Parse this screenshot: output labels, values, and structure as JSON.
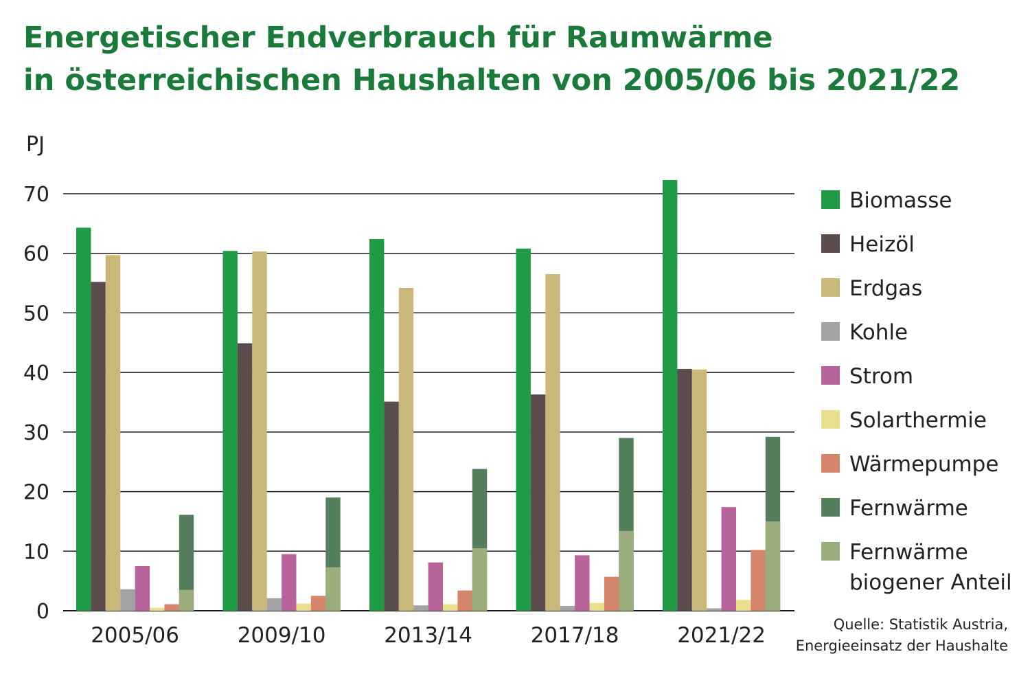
{
  "chart_data": {
    "type": "bar",
    "title_line1": "Energetischer Endverbrauch für Raumwärme",
    "title_line2": "in österreichischen Haushalten von 2005/06 bis 2021/22",
    "unit": "PJ",
    "ylim": [
      0,
      70
    ],
    "yticks": [
      0,
      10,
      20,
      30,
      40,
      50,
      60,
      70
    ],
    "grid": true,
    "legend_position": "right",
    "categories": [
      "2005/06",
      "2009/10",
      "2013/14",
      "2017/18",
      "2021/22"
    ],
    "series": [
      {
        "name": "Biomasse",
        "color": "#1f9a45",
        "values": [
          64.3,
          60.4,
          62.4,
          60.8,
          72.3
        ]
      },
      {
        "name": "Heizöl",
        "color": "#5a4d4c",
        "values": [
          55.2,
          44.9,
          35.1,
          36.3,
          40.6
        ]
      },
      {
        "name": "Erdgas",
        "color": "#c9b87a",
        "values": [
          59.7,
          60.3,
          54.2,
          56.5,
          40.5
        ]
      },
      {
        "name": "Kohle",
        "color": "#a3a3a3",
        "values": [
          3.6,
          2.1,
          0.9,
          0.8,
          0.4
        ]
      },
      {
        "name": "Strom",
        "color": "#b8639a",
        "values": [
          7.5,
          9.5,
          8.1,
          9.3,
          17.4
        ]
      },
      {
        "name": "Solarthermie",
        "color": "#e9e08e",
        "values": [
          0.5,
          1.2,
          1.1,
          1.3,
          1.8
        ]
      },
      {
        "name": "Wärmepumpe",
        "color": "#d4856a",
        "values": [
          1.1,
          2.5,
          3.4,
          5.7,
          10.2
        ]
      },
      {
        "name": "Fernwärme",
        "color": "#557f5c",
        "values": [
          16.1,
          19.0,
          23.8,
          29.0,
          29.2
        ]
      },
      {
        "name": "Fernwärme biogener Anteil",
        "color": "#9aad7d",
        "values": [
          3.5,
          7.3,
          10.5,
          13.4,
          15.0
        ]
      }
    ],
    "stacked_note": "Fernwärme biogener Anteil is shown as the lower part of the Fernwärme bar",
    "legend_labels": [
      [
        "Biomasse"
      ],
      [
        "Heizöl"
      ],
      [
        "Erdgas"
      ],
      [
        "Kohle"
      ],
      [
        "Strom"
      ],
      [
        "Solarthermie"
      ],
      [
        "Wärmepumpe"
      ],
      [
        "Fernwärme"
      ],
      [
        "Fernwärme",
        "biogener Anteil"
      ]
    ],
    "source_line1": "Quelle: Statistik Austria,",
    "source_line2": "Energieeinsatz der Haushalte"
  }
}
